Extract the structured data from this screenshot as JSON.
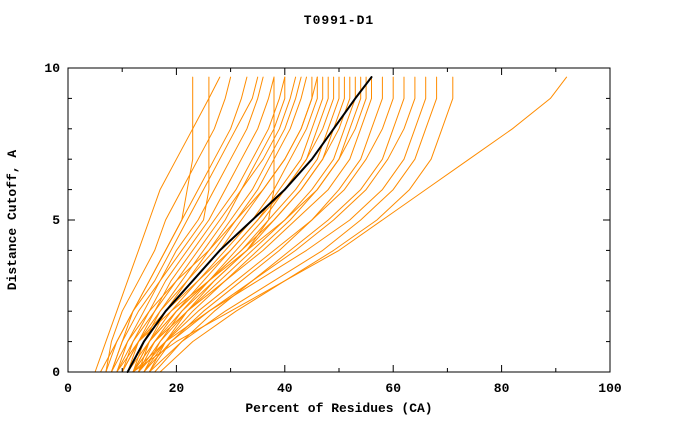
{
  "chart_data": {
    "type": "line",
    "title": "T0991-D1",
    "xlabel": "Percent of Residues (CA)",
    "ylabel": "Distance Cutoff, A",
    "xlim": [
      0,
      100
    ],
    "ylim": [
      0,
      10
    ],
    "x_ticks": [
      0,
      20,
      40,
      60,
      80,
      100
    ],
    "x_minor_ticks": [
      10,
      30,
      50,
      70,
      90
    ],
    "y_ticks": [
      0,
      5,
      10
    ],
    "y_minor_ticks": [
      1,
      2,
      3,
      4,
      6,
      7,
      8,
      9
    ],
    "grid": false,
    "legend": "none",
    "colors": {
      "model_line": "#ff8c00",
      "reference_line": "#000000",
      "axis": "#000000"
    },
    "y_levels": [
      0,
      1,
      2,
      3,
      4,
      5,
      6,
      7,
      8,
      9,
      9.7
    ],
    "series": [
      {
        "color": "#ff8c00",
        "width": 1,
        "x": [
          5,
          7,
          9,
          11,
          13,
          15,
          17,
          20,
          23,
          26,
          28
        ]
      },
      {
        "color": "#ff8c00",
        "width": 1,
        "x": [
          7,
          8,
          10,
          13,
          16,
          18,
          21,
          24,
          27,
          29,
          30
        ]
      },
      {
        "color": "#ff8c00",
        "width": 1,
        "x": [
          8,
          10,
          12,
          15,
          18,
          21,
          24,
          27,
          30,
          32,
          33
        ]
      },
      {
        "color": "#ff8c00",
        "width": 1,
        "x": [
          6,
          9,
          12,
          16,
          19,
          22,
          25,
          28,
          31,
          34,
          35
        ]
      },
      {
        "color": "#ff8c00",
        "width": 1,
        "x": [
          9,
          11,
          14,
          17,
          20,
          24,
          27,
          30,
          33,
          35,
          36
        ]
      },
      {
        "color": "#ff8c00",
        "width": 1,
        "x": [
          10,
          12,
          15,
          18,
          22,
          26,
          29,
          32,
          35,
          37,
          38
        ]
      },
      {
        "color": "#ff8c00",
        "width": 1,
        "x": [
          8,
          10,
          13,
          17,
          21,
          25,
          26,
          26,
          26,
          26,
          26
        ]
      },
      {
        "color": "#ff8c00",
        "width": 1,
        "x": [
          7,
          9,
          12,
          15,
          18,
          21,
          22,
          23,
          23,
          23,
          23
        ]
      },
      {
        "color": "#ff8c00",
        "width": 1,
        "x": [
          11,
          13,
          16,
          19,
          23,
          27,
          31,
          34,
          37,
          39,
          40
        ]
      },
      {
        "color": "#ff8c00",
        "width": 1,
        "x": [
          12,
          14,
          17,
          21,
          25,
          29,
          32,
          35,
          38,
          40,
          40
        ]
      },
      {
        "color": "#ff8c00",
        "width": 1,
        "x": [
          9,
          12,
          16,
          20,
          24,
          28,
          32,
          36,
          39,
          41,
          42
        ]
      },
      {
        "color": "#ff8c00",
        "width": 1,
        "x": [
          10,
          13,
          17,
          22,
          26,
          30,
          34,
          37,
          40,
          42,
          43
        ]
      },
      {
        "color": "#ff8c00",
        "width": 1,
        "x": [
          13,
          15,
          18,
          22,
          27,
          31,
          35,
          38,
          41,
          43,
          44
        ]
      },
      {
        "color": "#ff8c00",
        "width": 1,
        "x": [
          12,
          16,
          21,
          27,
          33,
          37,
          38,
          38,
          38,
          38,
          38
        ]
      },
      {
        "color": "#ff8c00",
        "width": 1,
        "x": [
          11,
          14,
          18,
          23,
          28,
          32,
          36,
          40,
          43,
          45,
          45
        ]
      },
      {
        "color": "#ff8c00",
        "width": 1,
        "x": [
          12,
          15,
          19,
          24,
          29,
          34,
          38,
          41,
          44,
          46,
          46
        ]
      },
      {
        "color": "#ff8c00",
        "width": 1,
        "x": [
          8,
          11,
          15,
          20,
          26,
          31,
          36,
          40,
          43,
          45,
          46
        ]
      },
      {
        "color": "#ff8c00",
        "width": 1,
        "x": [
          13,
          16,
          20,
          25,
          30,
          35,
          39,
          43,
          45,
          47,
          47
        ]
      },
      {
        "color": "#ff8c00",
        "width": 1,
        "x": [
          14,
          17,
          21,
          26,
          31,
          36,
          40,
          44,
          46,
          48,
          48
        ]
      },
      {
        "color": "#ff8c00",
        "width": 1,
        "x": [
          10,
          13,
          18,
          24,
          30,
          35,
          40,
          44,
          47,
          49,
          49
        ]
      },
      {
        "color": "#ff8c00",
        "width": 1,
        "x": [
          12,
          15,
          20,
          26,
          32,
          37,
          42,
          46,
          48,
          50,
          50
        ]
      },
      {
        "color": "#ff8c00",
        "width": 1,
        "x": [
          15,
          18,
          22,
          27,
          33,
          38,
          43,
          47,
          49,
          51,
          51
        ]
      },
      {
        "color": "#ff8c00",
        "width": 1,
        "x": [
          11,
          15,
          20,
          26,
          32,
          38,
          43,
          47,
          50,
          52,
          52
        ]
      },
      {
        "color": "#ff8c00",
        "width": 1,
        "x": [
          13,
          17,
          22,
          28,
          34,
          40,
          45,
          49,
          51,
          53,
          53
        ]
      },
      {
        "color": "#ff8c00",
        "width": 1,
        "x": [
          14,
          18,
          23,
          29,
          35,
          41,
          46,
          50,
          52,
          54,
          54
        ]
      },
      {
        "color": "#ff8c00",
        "width": 1,
        "x": [
          9,
          13,
          19,
          26,
          33,
          40,
          46,
          50,
          53,
          55,
          55
        ]
      },
      {
        "color": "#ff8c00",
        "width": 1,
        "x": [
          12,
          16,
          22,
          29,
          36,
          42,
          48,
          52,
          54,
          56,
          56
        ]
      },
      {
        "color": "#ff8c00",
        "width": 1,
        "x": [
          15,
          19,
          25,
          32,
          39,
          45,
          50,
          54,
          56,
          58,
          58
        ]
      },
      {
        "color": "#ff8c00",
        "width": 1,
        "x": [
          13,
          18,
          24,
          31,
          38,
          45,
          51,
          55,
          58,
          60,
          60
        ]
      },
      {
        "color": "#ff8c00",
        "width": 1,
        "x": [
          16,
          21,
          27,
          34,
          41,
          48,
          54,
          58,
          60,
          62,
          62
        ]
      },
      {
        "color": "#ff8c00",
        "width": 1,
        "x": [
          14,
          19,
          26,
          34,
          42,
          49,
          55,
          59,
          62,
          64,
          64
        ]
      },
      {
        "color": "#ff8c00",
        "width": 1,
        "x": [
          12,
          18,
          26,
          35,
          44,
          52,
          58,
          62,
          64,
          66,
          66
        ]
      },
      {
        "color": "#ff8c00",
        "width": 1,
        "x": [
          15,
          21,
          29,
          38,
          47,
          54,
          60,
          64,
          66,
          68,
          68
        ]
      },
      {
        "color": "#ff8c00",
        "width": 1,
        "x": [
          17,
          23,
          31,
          40,
          49,
          57,
          63,
          67,
          69,
          71,
          71
        ]
      },
      {
        "color": "#ff8c00",
        "width": 1,
        "x": [
          12,
          20,
          30,
          40,
          50,
          58,
          66,
          74,
          82,
          89,
          92
        ]
      },
      {
        "color": "#000000",
        "width": 2,
        "x": [
          11,
          14,
          18,
          23,
          28,
          34,
          40,
          45,
          49,
          53,
          56
        ]
      }
    ]
  }
}
